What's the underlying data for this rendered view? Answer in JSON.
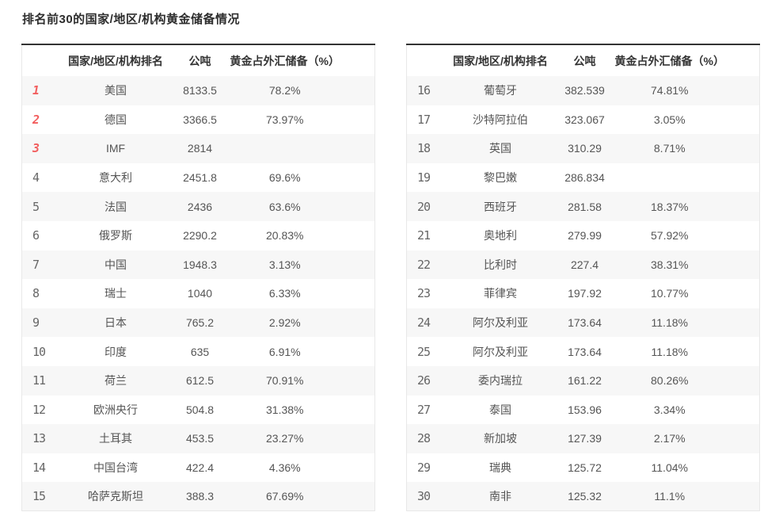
{
  "page_title": "排名前30的国家/地区/机构黄金储备情况",
  "columns": {
    "rank_label": "",
    "name_label": "国家/地区/机构排名",
    "tons_label": "公吨",
    "percent_label": "黄金占外汇储备（%）"
  },
  "colors": {
    "accent_red": "#f25e5e",
    "rank_gray": "#666666",
    "stripe": "#f7f7f7",
    "top_border": "#333333",
    "side_border": "#e8e8e8",
    "header_text": "#333333",
    "body_text": "#555555"
  },
  "tables": [
    {
      "name": "ranks-1-15",
      "rows": [
        {
          "rank": "1",
          "name": "美国",
          "tons": "8133.5",
          "percent": "78.2%"
        },
        {
          "rank": "2",
          "name": "德国",
          "tons": "3366.5",
          "percent": "73.97%"
        },
        {
          "rank": "3",
          "name": "IMF",
          "tons": "2814",
          "percent": ""
        },
        {
          "rank": "4",
          "name": "意大利",
          "tons": "2451.8",
          "percent": "69.6%"
        },
        {
          "rank": "5",
          "name": "法国",
          "tons": "2436",
          "percent": "63.6%"
        },
        {
          "rank": "6",
          "name": "俄罗斯",
          "tons": "2290.2",
          "percent": "20.83%"
        },
        {
          "rank": "7",
          "name": "中国",
          "tons": "1948.3",
          "percent": "3.13%"
        },
        {
          "rank": "8",
          "name": "瑞士",
          "tons": "1040",
          "percent": "6.33%"
        },
        {
          "rank": "9",
          "name": "日本",
          "tons": "765.2",
          "percent": "2.92%"
        },
        {
          "rank": "10",
          "name": "印度",
          "tons": "635",
          "percent": "6.91%"
        },
        {
          "rank": "11",
          "name": "荷兰",
          "tons": "612.5",
          "percent": "70.91%"
        },
        {
          "rank": "12",
          "name": "欧洲央行",
          "tons": "504.8",
          "percent": "31.38%"
        },
        {
          "rank": "13",
          "name": "土耳其",
          "tons": "453.5",
          "percent": "23.27%"
        },
        {
          "rank": "14",
          "name": "中国台湾",
          "tons": "422.4",
          "percent": "4.36%"
        },
        {
          "rank": "15",
          "name": "哈萨克斯坦",
          "tons": "388.3",
          "percent": "67.69%"
        }
      ]
    },
    {
      "name": "ranks-16-30",
      "rows": [
        {
          "rank": "16",
          "name": "葡萄牙",
          "tons": "382.539",
          "percent": "74.81%"
        },
        {
          "rank": "17",
          "name": "沙特阿拉伯",
          "tons": "323.067",
          "percent": "3.05%"
        },
        {
          "rank": "18",
          "name": "英国",
          "tons": "310.29",
          "percent": "8.71%"
        },
        {
          "rank": "19",
          "name": "黎巴嫩",
          "tons": "286.834",
          "percent": ""
        },
        {
          "rank": "20",
          "name": "西班牙",
          "tons": "281.58",
          "percent": "18.37%"
        },
        {
          "rank": "21",
          "name": "奥地利",
          "tons": "279.99",
          "percent": "57.92%"
        },
        {
          "rank": "22",
          "name": "比利时",
          "tons": "227.4",
          "percent": "38.31%"
        },
        {
          "rank": "23",
          "name": "菲律宾",
          "tons": "197.92",
          "percent": "10.77%"
        },
        {
          "rank": "24",
          "name": "阿尔及利亚",
          "tons": "173.64",
          "percent": "11.18%"
        },
        {
          "rank": "25",
          "name": "阿尔及利亚",
          "tons": "173.64",
          "percent": "11.18%"
        },
        {
          "rank": "26",
          "name": "委内瑞拉",
          "tons": "161.22",
          "percent": "80.26%"
        },
        {
          "rank": "27",
          "name": "泰国",
          "tons": "153.96",
          "percent": "3.34%"
        },
        {
          "rank": "28",
          "name": "新加坡",
          "tons": "127.39",
          "percent": "2.17%"
        },
        {
          "rank": "29",
          "name": "瑞典",
          "tons": "125.72",
          "percent": "11.04%"
        },
        {
          "rank": "30",
          "name": "南非",
          "tons": "125.32",
          "percent": "11.1%"
        }
      ]
    }
  ]
}
